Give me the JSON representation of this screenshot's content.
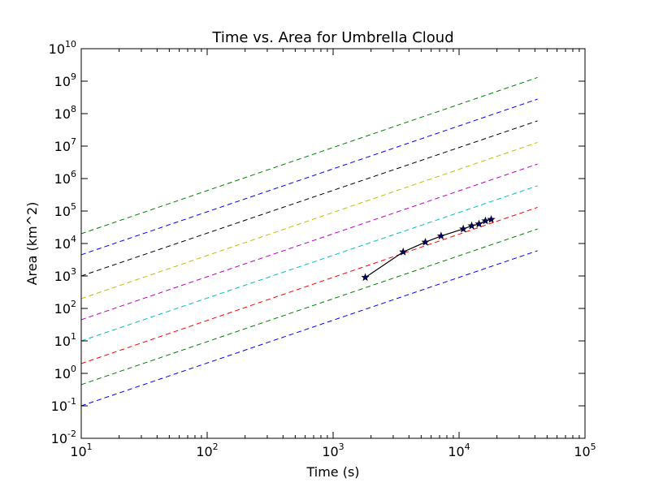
{
  "chart_data": {
    "type": "line",
    "title": "Time vs. Area for Umbrella Cloud",
    "xlabel": "Time (s)",
    "ylabel": "Area (km^2)",
    "xscale": "log",
    "yscale": "log",
    "xlim": [
      10,
      100000
    ],
    "ylim": [
      0.01,
      10000000000
    ],
    "x_ticks": [
      {
        "base": "10",
        "exp": "1"
      },
      {
        "base": "10",
        "exp": "2"
      },
      {
        "base": "10",
        "exp": "3"
      },
      {
        "base": "10",
        "exp": "4"
      },
      {
        "base": "10",
        "exp": "5"
      }
    ],
    "y_ticks": [
      {
        "base": "10",
        "exp": "-2"
      },
      {
        "base": "10",
        "exp": "-1"
      },
      {
        "base": "10",
        "exp": "0"
      },
      {
        "base": "10",
        "exp": "1"
      },
      {
        "base": "10",
        "exp": "2"
      },
      {
        "base": "10",
        "exp": "3"
      },
      {
        "base": "10",
        "exp": "4"
      },
      {
        "base": "10",
        "exp": "5"
      },
      {
        "base": "10",
        "exp": "6"
      },
      {
        "base": "10",
        "exp": "7"
      },
      {
        "base": "10",
        "exp": "8"
      },
      {
        "base": "10",
        "exp": "9"
      },
      {
        "base": "10",
        "exp": "10"
      }
    ],
    "grid": false,
    "reference_lines": [
      {
        "color": "#008000",
        "x": [
          10,
          42000
        ],
        "y": [
          20000,
          1300000000
        ]
      },
      {
        "color": "#0000ff",
        "x": [
          10,
          42000
        ],
        "y": [
          4500,
          280000000
        ]
      },
      {
        "color": "#000000",
        "x": [
          10,
          42000
        ],
        "y": [
          1000,
          60000000
        ]
      },
      {
        "color": "#bfbf00",
        "x": [
          10,
          42000
        ],
        "y": [
          200,
          13000000
        ]
      },
      {
        "color": "#bf00bf",
        "x": [
          10,
          42000
        ],
        "y": [
          45,
          2800000
        ]
      },
      {
        "color": "#00bfbf",
        "x": [
          10,
          42000
        ],
        "y": [
          10,
          600000
        ]
      },
      {
        "color": "#ff0000",
        "x": [
          10,
          42000
        ],
        "y": [
          2,
          130000
        ]
      },
      {
        "color": "#008000",
        "x": [
          10,
          42000
        ],
        "y": [
          0.45,
          28000
        ]
      },
      {
        "color": "#0000ff",
        "x": [
          10,
          42000
        ],
        "y": [
          0.1,
          6000
        ]
      }
    ],
    "series": [
      {
        "color": "#000000",
        "marker_color": "#000080",
        "marker": "star",
        "x": [
          1800,
          3600,
          5400,
          7200,
          10800,
          12600,
          14400,
          16200,
          18000
        ],
        "y": [
          900,
          5500,
          11000,
          17000,
          28000,
          35000,
          40000,
          50000,
          55000
        ]
      }
    ]
  }
}
